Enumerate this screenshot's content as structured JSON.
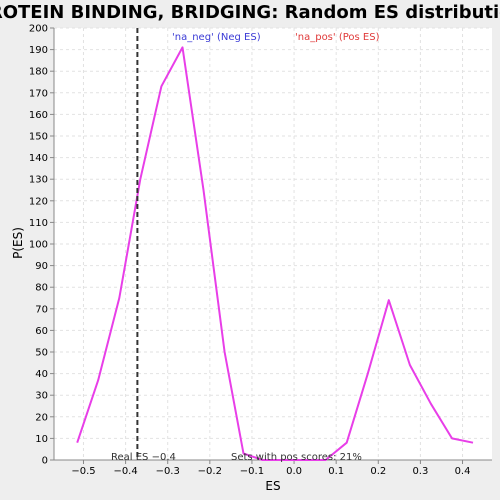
{
  "chart_data": {
    "type": "line",
    "title": "PROTEIN BINDING, BRIDGING: Random ES distribution",
    "xlabel": "ES",
    "ylabel": "P(ES)",
    "xlim": [
      -0.57,
      0.47
    ],
    "ylim": [
      0,
      200
    ],
    "x_ticks": [
      -0.5,
      -0.4,
      -0.3,
      -0.2,
      -0.1,
      0.0,
      0.1,
      0.2,
      0.3,
      0.4
    ],
    "x_tick_labels": [
      "−0.5",
      "−0.4",
      "−0.3",
      "−0.2",
      "−0.1",
      "0.0",
      "0.1",
      "0.2",
      "0.3",
      "0.4"
    ],
    "y_ticks": [
      0,
      10,
      20,
      30,
      40,
      50,
      60,
      70,
      80,
      90,
      100,
      110,
      120,
      130,
      140,
      150,
      160,
      170,
      180,
      190,
      200
    ],
    "grid": true,
    "legend": {
      "placement": "top",
      "entries": [
        {
          "label": "'na_neg' (Neg ES)",
          "color": "#3b3bd6"
        },
        {
          "label": "'na_pos' (Pos ES)",
          "color": "#e03a3a"
        }
      ]
    },
    "series": [
      {
        "color": "#e83ee8",
        "x": [
          -0.515,
          -0.465,
          -0.415,
          -0.365,
          -0.315,
          -0.265,
          -0.215,
          -0.165,
          -0.12,
          -0.075,
          -0.025,
          0.025,
          0.075,
          0.125,
          0.175,
          0.225,
          0.275,
          0.325,
          0.375,
          0.425
        ],
        "y": [
          8,
          37,
          75,
          130,
          173,
          191,
          125,
          50,
          3,
          0,
          0,
          0,
          0,
          8,
          40,
          74,
          44,
          26,
          10,
          8
        ]
      }
    ],
    "vline": {
      "x": -0.372,
      "style": "dashed",
      "color": "#333333"
    },
    "annotations": {
      "real_es": "Real ES −0.4",
      "pos_scores": "Sets with pos scores: 21%"
    },
    "colors": {
      "background": "#eeeeee",
      "plot_background": "#ffffff",
      "grid": "#e2e2e2",
      "axis": "#888888"
    }
  }
}
